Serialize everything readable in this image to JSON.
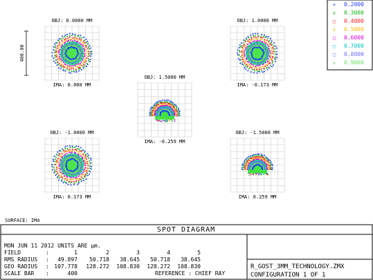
{
  "legend": [
    {
      "label": "0.2000",
      "color": "#1f3fff",
      "marker": "+"
    },
    {
      "label": "0.3000",
      "color": "#14b414",
      "marker": "x"
    },
    {
      "label": "0.4000",
      "color": "#ff2020",
      "marker": "□"
    },
    {
      "label": "0.5000",
      "color": "#ffb400",
      "marker": "x"
    },
    {
      "label": "0.6000",
      "color": "#d400d4",
      "marker": "□"
    },
    {
      "label": "0.7000",
      "color": "#00c0c0",
      "marker": "□"
    },
    {
      "label": "0.8000",
      "color": "#6a6aff",
      "marker": "□"
    },
    {
      "label": "0.9000",
      "color": "#66dd66",
      "marker": "x"
    }
  ],
  "scale_bar_label": "400.00",
  "spots": [
    {
      "obj": "OBJ: 0.0000 MM",
      "ima": "IMA: 0.000 MM"
    },
    {
      "obj": "OBJ: 1.0000 MM",
      "ima": "IMA: -0.173 MM"
    },
    {
      "obj": "OBJ: 1.5000 MM",
      "ima": "IMA: -0.259 MM"
    },
    {
      "obj": "OBJ: -1.0000 MM",
      "ima": "IMA: 0.173 MM"
    },
    {
      "obj": "OBJ: -1.5000 MM",
      "ima": "IMA: 0.259 MM"
    }
  ],
  "surface": "SURFACE: IMA",
  "title": "SPOT DIAGRAM",
  "date_units": "MON JUN 11 2012  UNITS ARE µm.",
  "table": {
    "field_label": "FIELD",
    "rms_label": "RMS RADIUS",
    "geo_label": "GEO RADIUS",
    "scale_label": "SCALE BAR",
    "fields": [
      "1",
      "2",
      "3",
      "4",
      "5"
    ],
    "rms": [
      "49.897",
      "50.718",
      "38.645",
      "50.718",
      "38.645"
    ],
    "geo": [
      "107.778",
      "128.272",
      "108.830",
      "128.272",
      "108.830"
    ],
    "scale_value": "400",
    "reference": "REFERENCE  :  CHIEF RAY"
  },
  "filename": "R_GOST_3MM_TECHNOLOGY.ZMX",
  "configuration": "CONFIGURATION  1  OF  1"
}
